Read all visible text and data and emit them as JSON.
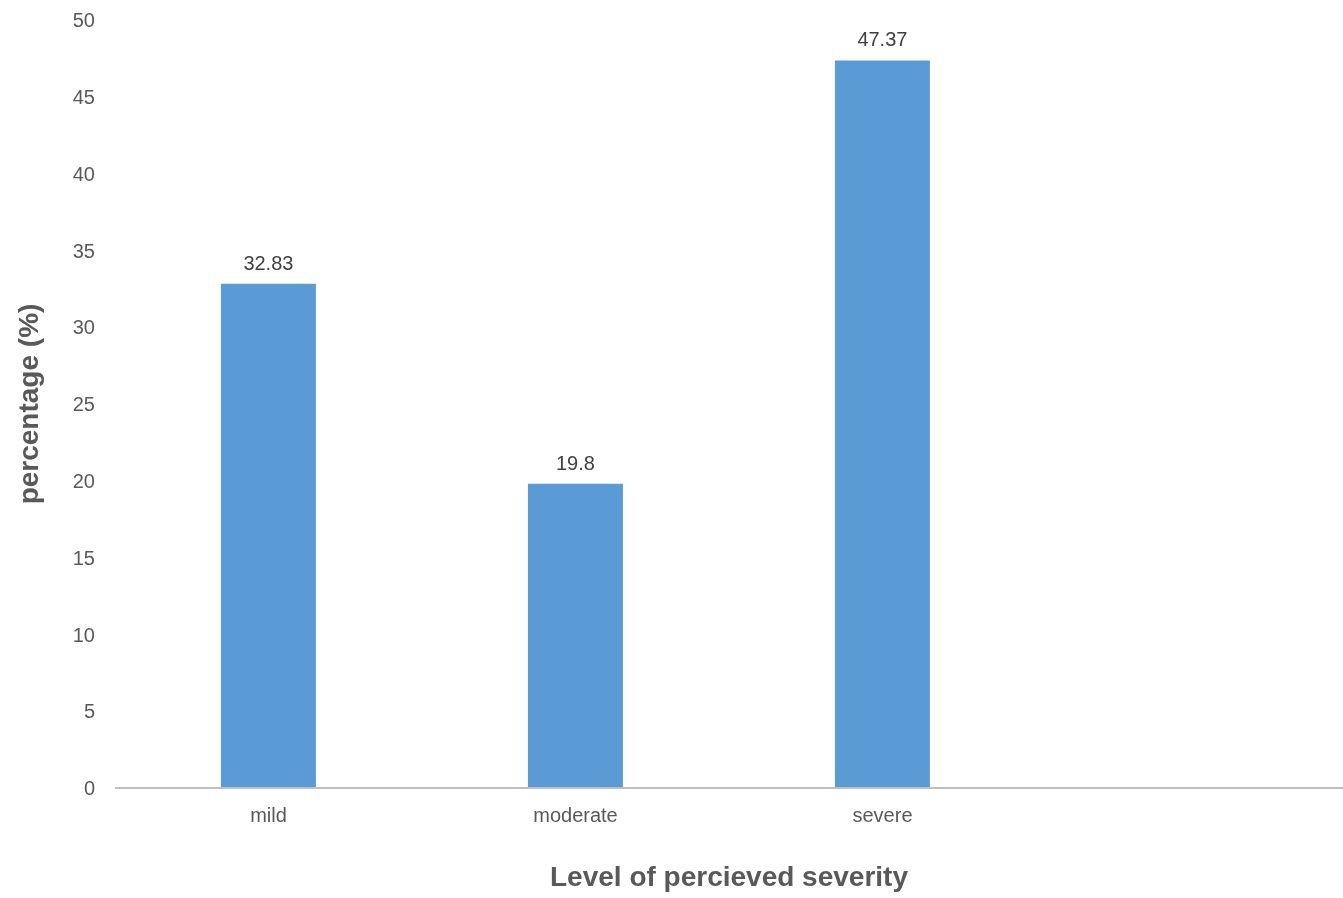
{
  "chart_data": {
    "type": "bar",
    "xlabel": "Level of percieved severity",
    "ylabel": "percentage (%)",
    "categories": [
      "mild",
      "moderate",
      "severe",
      null
    ],
    "values": [
      32.83,
      19.8,
      47.37,
      null
    ],
    "color": "#5b9bd5",
    "ylim": [
      0,
      50
    ],
    "yticks": [
      0,
      5,
      10,
      15,
      20,
      25,
      30,
      35,
      40,
      45,
      50
    ],
    "grid": false,
    "data_labels": true
  }
}
